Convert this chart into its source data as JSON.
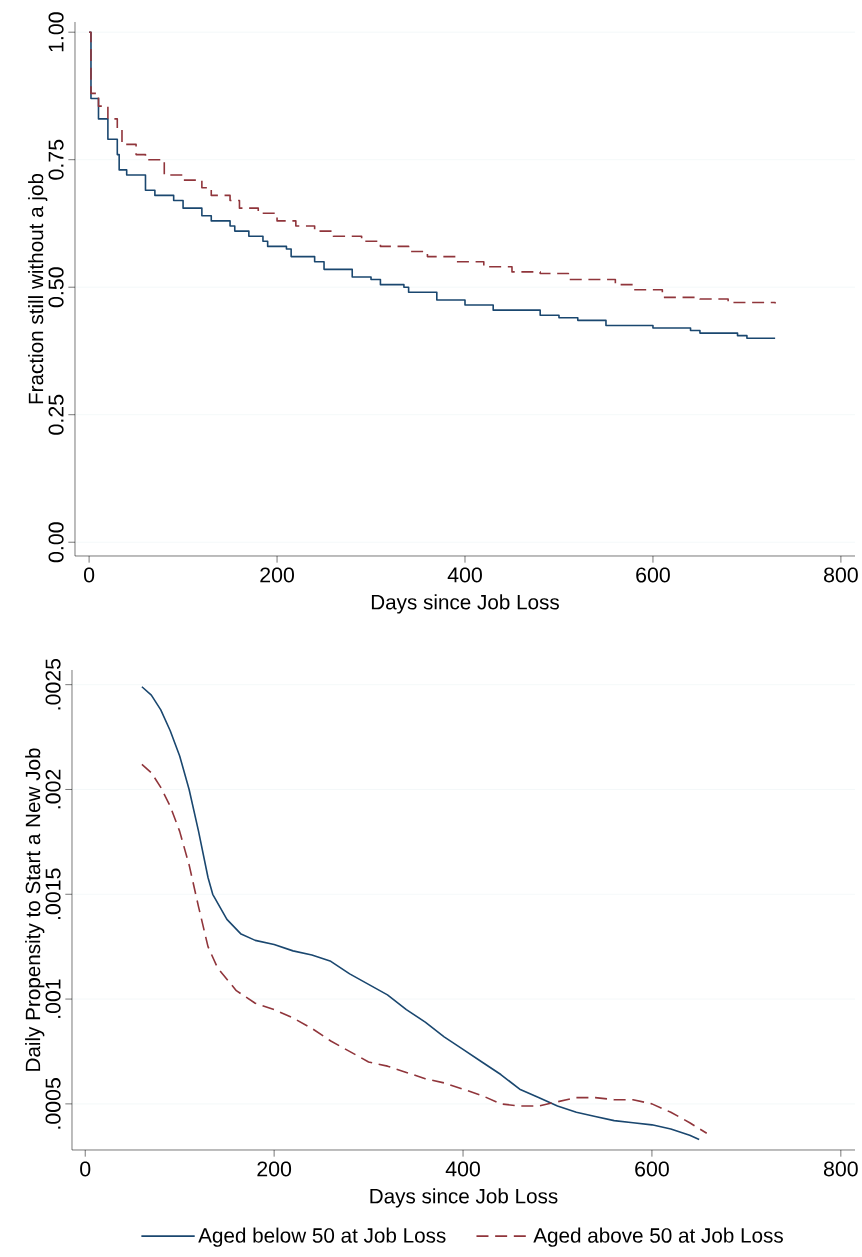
{
  "chart_data": [
    {
      "type": "line",
      "xlabel": "Days since Job Loss",
      "ylabel": "Fraction still without a job",
      "xlim": [
        -15,
        815
      ],
      "ylim": [
        -0.027,
        1.02
      ],
      "xticks": [
        0,
        200,
        400,
        600,
        800
      ],
      "yticks": [
        {
          "value": 0,
          "label": "0.00"
        },
        {
          "value": 0.25,
          "label": "0.25"
        },
        {
          "value": 0.5,
          "label": "0.50"
        },
        {
          "value": 0.75,
          "label": "0.75"
        },
        {
          "value": 1,
          "label": "1.00"
        }
      ],
      "grid": "y",
      "series": [
        {
          "type": "step",
          "color": "#1a476f",
          "line_style": "solid",
          "x": [
            0,
            2,
            10,
            20,
            30,
            32,
            40,
            60,
            70,
            90,
            100,
            120,
            130,
            150,
            155,
            170,
            185,
            190,
            210,
            215,
            240,
            250,
            280,
            300,
            310,
            335,
            340,
            370,
            400,
            430,
            480,
            500,
            520,
            550,
            600,
            640,
            650,
            690,
            700,
            730
          ],
          "values": [
            1.0,
            0.87,
            0.83,
            0.79,
            0.76,
            0.73,
            0.72,
            0.69,
            0.68,
            0.67,
            0.655,
            0.64,
            0.63,
            0.62,
            0.61,
            0.6,
            0.59,
            0.58,
            0.575,
            0.56,
            0.55,
            0.535,
            0.52,
            0.515,
            0.505,
            0.5,
            0.49,
            0.475,
            0.465,
            0.455,
            0.445,
            0.44,
            0.435,
            0.425,
            0.42,
            0.415,
            0.41,
            0.405,
            0.4,
            0.4
          ]
        },
        {
          "type": "step",
          "color": "#90353b",
          "line_style": "dashed",
          "x": [
            0,
            2,
            10,
            20,
            30,
            35,
            50,
            60,
            80,
            100,
            120,
            130,
            150,
            160,
            180,
            200,
            220,
            240,
            260,
            290,
            310,
            340,
            360,
            390,
            420,
            450,
            480,
            510,
            560,
            580,
            610,
            650,
            680,
            730
          ],
          "values": [
            1.0,
            0.88,
            0.855,
            0.83,
            0.81,
            0.78,
            0.76,
            0.75,
            0.72,
            0.71,
            0.695,
            0.68,
            0.67,
            0.655,
            0.645,
            0.63,
            0.62,
            0.61,
            0.6,
            0.59,
            0.58,
            0.57,
            0.56,
            0.55,
            0.54,
            0.53,
            0.527,
            0.515,
            0.505,
            0.495,
            0.48,
            0.477,
            0.47,
            0.468
          ]
        }
      ]
    },
    {
      "type": "line",
      "xlabel": "Days since Job Loss",
      "ylabel": "Daily Propensity to Start a New Job",
      "xlim": [
        -14,
        815
      ],
      "ylim": [
        0.00028,
        0.00257
      ],
      "xticks": [
        0,
        200,
        400,
        600,
        800
      ],
      "yticks": [
        {
          "value": 0.0005,
          "label": ".0005"
        },
        {
          "value": 0.001,
          "label": ".001"
        },
        {
          "value": 0.0015,
          "label": ".0015"
        },
        {
          "value": 0.002,
          "label": ".002"
        },
        {
          "value": 0.0025,
          "label": ".0025"
        }
      ],
      "grid": "y",
      "legend": "bottom",
      "series": [
        {
          "name": "Aged below 50 at Job Loss",
          "color": "#1a476f",
          "line_style": "solid",
          "x": [
            60,
            70,
            80,
            90,
            100,
            110,
            120,
            130,
            135,
            150,
            165,
            180,
            200,
            220,
            240,
            260,
            280,
            300,
            320,
            340,
            360,
            380,
            400,
            420,
            440,
            460,
            480,
            500,
            520,
            540,
            560,
            580,
            600,
            620,
            640,
            650
          ],
          "values": [
            0.00249,
            0.00245,
            0.00238,
            0.00228,
            0.00216,
            0.002,
            0.0018,
            0.00158,
            0.0015,
            0.00138,
            0.00131,
            0.00128,
            0.00126,
            0.00123,
            0.00121,
            0.00118,
            0.00112,
            0.00107,
            0.00102,
            0.00095,
            0.00089,
            0.00082,
            0.00076,
            0.0007,
            0.00064,
            0.00057,
            0.00053,
            0.00049,
            0.00046,
            0.00044,
            0.00042,
            0.00041,
            0.0004,
            0.00038,
            0.00035,
            0.00033
          ]
        },
        {
          "name": "Aged above 50 at Job Loss",
          "color": "#90353b",
          "line_style": "dashed",
          "x": [
            60,
            70,
            80,
            90,
            100,
            110,
            120,
            130,
            140,
            160,
            180,
            200,
            220,
            240,
            260,
            280,
            300,
            320,
            340,
            360,
            380,
            400,
            420,
            440,
            460,
            480,
            500,
            520,
            540,
            560,
            580,
            600,
            620,
            640,
            658
          ],
          "values": [
            0.00212,
            0.00208,
            0.00201,
            0.00192,
            0.0018,
            0.00164,
            0.00144,
            0.00125,
            0.00115,
            0.00104,
            0.00098,
            0.00095,
            0.00091,
            0.00086,
            0.0008,
            0.00075,
            0.0007,
            0.00068,
            0.00065,
            0.00062,
            0.0006,
            0.00057,
            0.00054,
            0.0005,
            0.00049,
            0.00049,
            0.00051,
            0.00053,
            0.00053,
            0.00052,
            0.00052,
            0.0005,
            0.00046,
            0.00041,
            0.00036
          ]
        }
      ]
    }
  ]
}
